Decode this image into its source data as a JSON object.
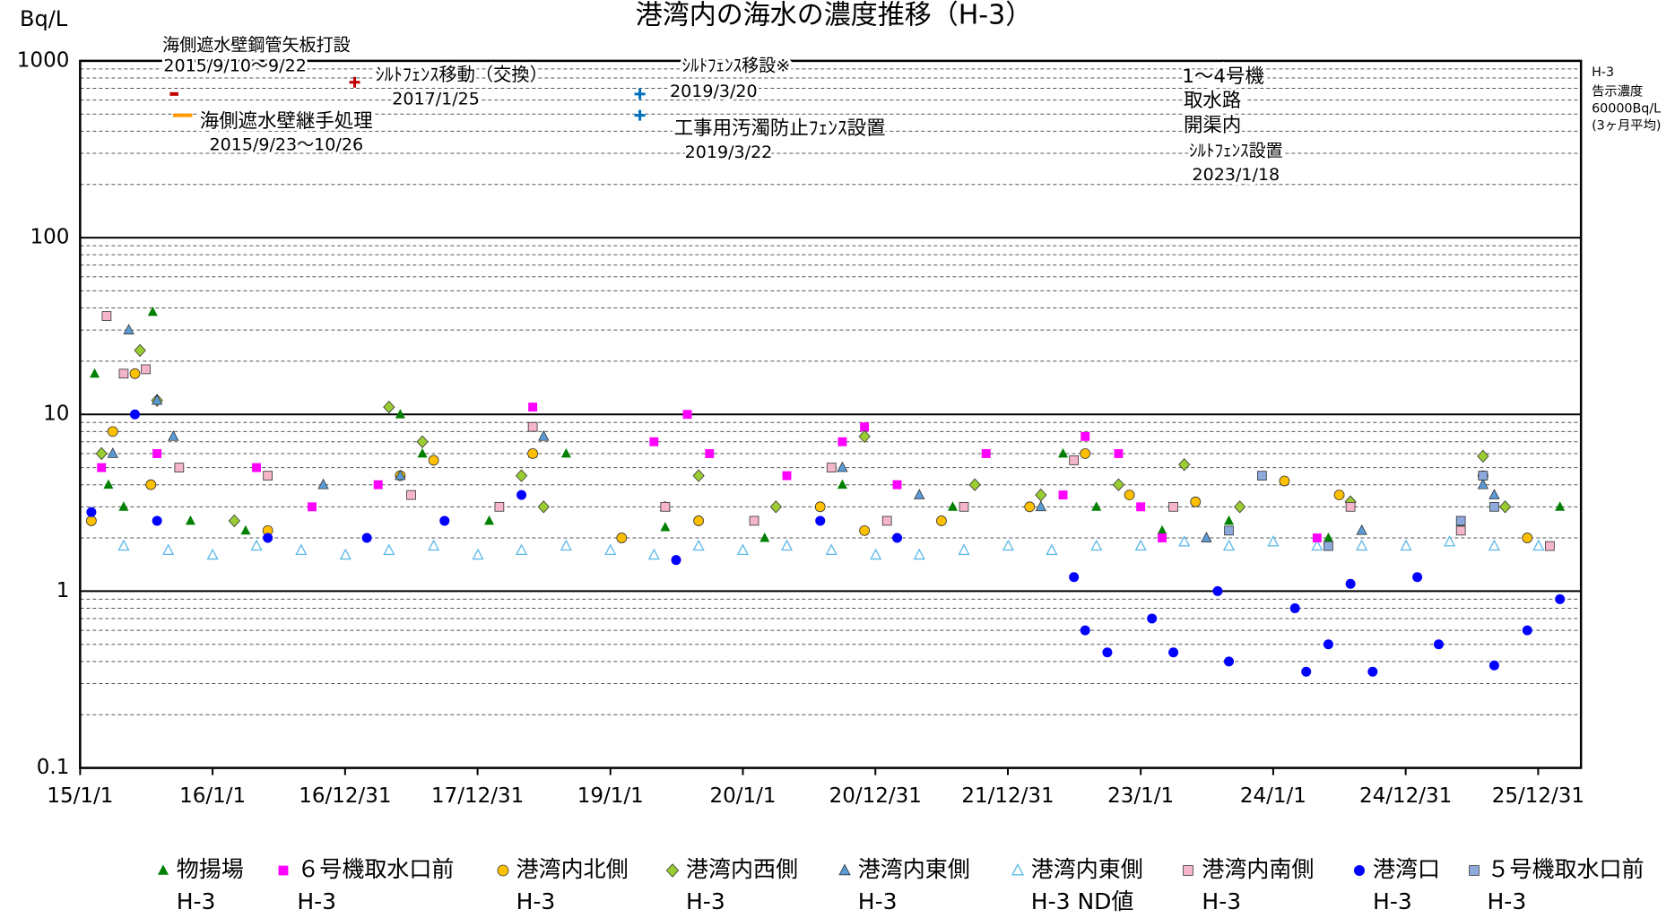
{
  "chart_data": {
    "type": "scatter",
    "title": "港湾内の海水の濃度推移（H-3）",
    "y_label": "Bq/L",
    "y_log": true,
    "grid": true,
    "ylim": [
      0.1,
      1000
    ],
    "yticks": [
      0.1,
      1,
      10,
      100,
      1000
    ],
    "xlim": [
      "2015-01-01",
      "2026-04-28"
    ],
    "xticks": [
      {
        "value": "2015-01-01",
        "label": "15/1/1"
      },
      {
        "value": "2016-01-01",
        "label": "16/1/1"
      },
      {
        "value": "2016-12-31",
        "label": "16/12/31"
      },
      {
        "value": "2017-12-31",
        "label": "17/12/31"
      },
      {
        "value": "2019-01-01",
        "label": "19/1/1"
      },
      {
        "value": "2020-01-01",
        "label": "20/1/1"
      },
      {
        "value": "2020-12-31",
        "label": "20/12/31"
      },
      {
        "value": "2021-12-31",
        "label": "21/12/31"
      },
      {
        "value": "2023-01-01",
        "label": "23/1/1"
      },
      {
        "value": "2024-01-01",
        "label": "24/1/1"
      },
      {
        "value": "2024-12-31",
        "label": "24/12/31"
      },
      {
        "value": "2025-12-31",
        "label": "25/12/31"
      }
    ],
    "annotations": [
      "海側遮水壁鋼管矢板打設",
      "2015/9/10～9/22",
      "海側遮水壁継手処理",
      "2015/9/23～10/26",
      "ｼﾙﾄﾌｪﾝｽ移動（交換）",
      "2017/1/25",
      "ｼﾙﾄﾌｪﾝｽ移設※",
      "2019/3/20",
      "工事用汚濁防止ﾌｪﾝｽ設置",
      "2019/3/22",
      "1～4号機",
      "取水路",
      "開渠内",
      "ｼﾙﾄﾌｪﾝｽ設置",
      "2023/1/18",
      "H-3",
      "告示濃度",
      "60000Bq/L",
      "(3ヶ月平均)"
    ],
    "series": [
      {
        "name": "物揚場\nH-3",
        "color": "#008000",
        "marker": "triangle",
        "x": [
          "2015-02-10",
          "2015-03-20",
          "2015-05-01",
          "2015-07-20",
          "2015-11-01",
          "2016-04-01",
          "2017-06-01",
          "2017-08-01",
          "2018-02-01",
          "2018-06-01",
          "2018-09-01",
          "2019-06-01",
          "2020-03-01",
          "2020-10-01",
          "2021-08-01",
          "2022-06-01",
          "2022-09-01",
          "2023-03-01",
          "2023-09-01",
          "2024-06-01",
          "2025-06-01",
          "2026-03-01"
        ],
        "values": [
          17,
          4,
          3,
          38,
          2.5,
          2.2,
          10,
          6,
          2.5,
          6,
          6,
          2.3,
          2,
          4,
          3,
          6,
          3,
          2.2,
          2.5,
          2,
          2.4,
          3
        ]
      },
      {
        "name": "６号機取水口前\nH-3",
        "color": "#ff00ff",
        "marker": "square",
        "x": [
          "2015-03-01",
          "2015-08-01",
          "2016-05-01",
          "2016-10-01",
          "2017-04-01",
          "2018-06-01",
          "2019-05-01",
          "2019-08-01",
          "2019-10-01",
          "2020-05-01",
          "2020-10-01",
          "2020-12-01",
          "2021-03-01",
          "2021-11-01",
          "2022-06-01",
          "2022-08-01",
          "2022-11-01",
          "2023-01-01",
          "2023-03-01",
          "2024-05-01",
          "2025-06-01"
        ],
        "values": [
          5,
          6,
          5,
          3,
          4,
          11,
          7,
          10,
          6,
          4.5,
          7,
          8.5,
          4,
          6,
          3.5,
          7.5,
          6,
          3,
          2,
          2,
          2.5
        ]
      },
      {
        "name": "港湾内北側\nH-3",
        "color": "#ffc000",
        "marker": "circle",
        "x": [
          "2015-02-01",
          "2015-04-01",
          "2015-06-01",
          "2015-07-15",
          "2016-06-01",
          "2017-06-01",
          "2017-09-01",
          "2018-06-01",
          "2019-02-01",
          "2019-09-01",
          "2020-08-01",
          "2020-12-01",
          "2021-07-01",
          "2022-03-01",
          "2022-08-01",
          "2022-12-01",
          "2023-06-01",
          "2024-02-01",
          "2024-07-01",
          "2025-08-01",
          "2025-12-01"
        ],
        "values": [
          2.5,
          8,
          17,
          4,
          2.2,
          4.5,
          5.5,
          6,
          2,
          2.5,
          3,
          2.2,
          2.5,
          3,
          6,
          3.5,
          3.2,
          4.2,
          3.5,
          4.5,
          2
        ]
      },
      {
        "name": "港湾内西側\nH-3",
        "color": "#9acd32",
        "marker": "diamond",
        "x": [
          "2015-03-01",
          "2015-06-15",
          "2015-08-01",
          "2016-03-01",
          "2017-05-01",
          "2017-08-01",
          "2018-05-01",
          "2018-07-01",
          "2019-09-01",
          "2020-04-01",
          "2020-12-01",
          "2021-10-01",
          "2022-04-01",
          "2022-11-01",
          "2023-05-01",
          "2023-10-01",
          "2024-08-01",
          "2025-08-01",
          "2025-10-01"
        ],
        "values": [
          6,
          23,
          12,
          2.5,
          11,
          7,
          4.5,
          3,
          4.5,
          3,
          7.5,
          4,
          3.5,
          4,
          5.2,
          3,
          3.2,
          5.8,
          3
        ]
      },
      {
        "name": "港湾内東側\nH-3",
        "color": "#5b9bd5",
        "marker": "triangle",
        "x": [
          "2015-04-01",
          "2015-05-15",
          "2015-08-01",
          "2015-09-15",
          "2016-11-01",
          "2017-06-01",
          "2018-07-01",
          "2019-06-01",
          "2020-10-01",
          "2021-05-01",
          "2022-04-01",
          "2023-07-01",
          "2024-09-01",
          "2025-08-01",
          "2025-09-01"
        ],
        "values": [
          6,
          30,
          12,
          7.5,
          4,
          4.5,
          7.5,
          3,
          5,
          3.5,
          3,
          2,
          2.2,
          4,
          3.5
        ]
      },
      {
        "name": "港湾内東側\nH-3 ND値",
        "color": "#5bb8e8",
        "marker": "triangle-open",
        "x": [
          "2015-05-01",
          "2015-09-01",
          "2016-01-01",
          "2016-05-01",
          "2016-09-01",
          "2017-01-01",
          "2017-05-01",
          "2017-09-01",
          "2018-01-01",
          "2018-05-01",
          "2018-09-01",
          "2019-01-01",
          "2019-05-01",
          "2019-09-01",
          "2020-01-01",
          "2020-05-01",
          "2020-09-01",
          "2021-01-01",
          "2021-05-01",
          "2021-09-01",
          "2022-01-01",
          "2022-05-01",
          "2022-09-01",
          "2023-01-01",
          "2023-05-01",
          "2023-09-01",
          "2024-01-01",
          "2024-05-01",
          "2024-09-01",
          "2025-01-01",
          "2025-05-01",
          "2025-09-01",
          "2026-01-01"
        ],
        "values": [
          1.8,
          1.7,
          1.6,
          1.8,
          1.7,
          1.6,
          1.7,
          1.8,
          1.6,
          1.7,
          1.8,
          1.7,
          1.6,
          1.8,
          1.7,
          1.8,
          1.7,
          1.6,
          1.6,
          1.7,
          1.8,
          1.7,
          1.8,
          1.8,
          1.9,
          1.8,
          1.9,
          1.8,
          1.8,
          1.8,
          1.9,
          1.8,
          1.8
        ]
      },
      {
        "name": "港湾内南側\nH-3",
        "color": "#f4b6c8",
        "marker": "square",
        "x": [
          "2015-03-15",
          "2015-05-01",
          "2015-07-01",
          "2015-10-01",
          "2016-06-01",
          "2017-07-01",
          "2018-03-01",
          "2018-06-01",
          "2019-06-01",
          "2020-02-01",
          "2020-09-01",
          "2021-02-01",
          "2021-09-01",
          "2022-07-01",
          "2023-04-01",
          "2024-08-01",
          "2025-06-01",
          "2026-02-01"
        ],
        "values": [
          36,
          17,
          18,
          5,
          4.5,
          3.5,
          3,
          8.5,
          3,
          2.5,
          5,
          2.5,
          3,
          5.5,
          3,
          3,
          2.2,
          1.8
        ]
      },
      {
        "name": "港湾口\nH-3",
        "color": "#0000ff",
        "marker": "circle",
        "x": [
          "2015-02-01",
          "2015-06-01",
          "2015-08-01",
          "2016-06-01",
          "2017-03-01",
          "2017-10-01",
          "2018-05-01",
          "2019-07-01",
          "2020-08-01",
          "2021-03-01",
          "2022-07-01",
          "2022-08-01",
          "2022-10-01",
          "2023-02-01",
          "2023-04-01",
          "2023-08-01",
          "2023-09-01",
          "2024-03-01",
          "2024-04-01",
          "2024-06-01",
          "2024-08-01",
          "2024-10-01",
          "2025-02-01",
          "2025-04-01",
          "2025-09-01",
          "2025-12-01",
          "2026-03-01"
        ],
        "values": [
          2.8,
          10,
          2.5,
          2,
          2,
          2.5,
          3.5,
          1.5,
          2.5,
          2,
          1.2,
          0.6,
          0.45,
          0.7,
          0.45,
          1,
          0.4,
          0.8,
          0.35,
          0.5,
          1.1,
          0.35,
          1.2,
          0.5,
          0.38,
          0.6,
          0.9
        ]
      },
      {
        "name": "５号機取水口前\nH-3",
        "color": "#8ea9db",
        "marker": "square",
        "x": [
          "2023-09-01",
          "2023-12-01",
          "2024-06-01",
          "2025-06-01",
          "2025-08-01",
          "2025-09-01"
        ],
        "values": [
          2.2,
          4.5,
          1.8,
          2.5,
          4.5,
          3
        ]
      }
    ]
  }
}
